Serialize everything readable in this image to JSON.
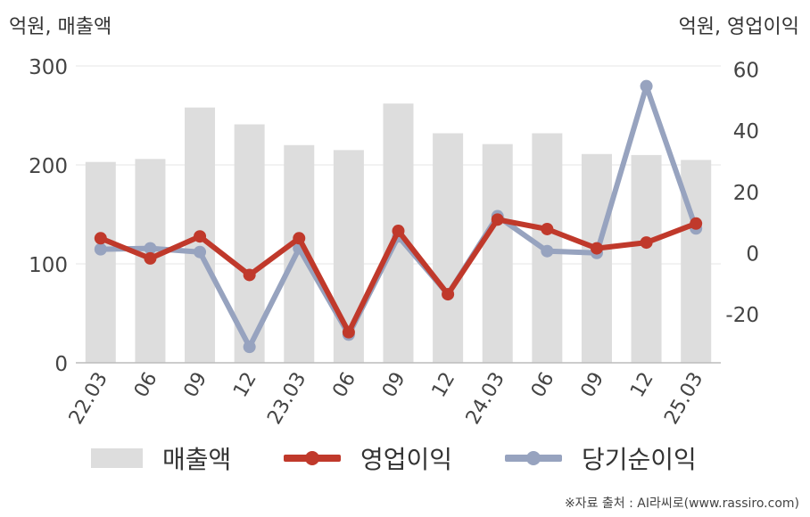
{
  "chart_data": {
    "type": "bar+line",
    "categories": [
      "22.03",
      "06",
      "09",
      "12",
      "23.03",
      "06",
      "09",
      "12",
      "24.03",
      "06",
      "09",
      "12",
      "25.03"
    ],
    "left_axis": {
      "label": "억원, 매출액",
      "ticks": [
        0,
        100,
        200,
        300
      ],
      "ylim": [
        0,
        300
      ]
    },
    "right_axis": {
      "label": "억원, 영업이익",
      "ticks": [
        -20,
        0,
        20,
        40,
        60
      ],
      "ylim": [
        -36,
        61
      ]
    },
    "series": [
      {
        "name": "매출액",
        "type": "bar",
        "axis": "left",
        "color": "#dddddd",
        "values": [
          203,
          206,
          258,
          241,
          220,
          215,
          262,
          232,
          221,
          232,
          211,
          210,
          205
        ]
      },
      {
        "name": "영업이익",
        "type": "line",
        "axis": "right",
        "color": "#c0392b",
        "values": [
          4.7,
          -1.9,
          5.3,
          -7.3,
          4.7,
          -26.0,
          7.1,
          -13.6,
          10.8,
          7.7,
          1.4,
          3.3,
          9.5
        ]
      },
      {
        "name": "당기순이익",
        "type": "line",
        "axis": "right",
        "color": "#97a3bf",
        "values": [
          1.1,
          1.4,
          0.2,
          -30.8,
          1.4,
          -26.8,
          5.3,
          -13.6,
          11.9,
          0.5,
          -0.1,
          54.4,
          7.9
        ]
      }
    ],
    "grid": true,
    "legend_position": "bottom"
  },
  "source_text": "※자료 출처 : AI라씨로(www.rassiro.com)"
}
